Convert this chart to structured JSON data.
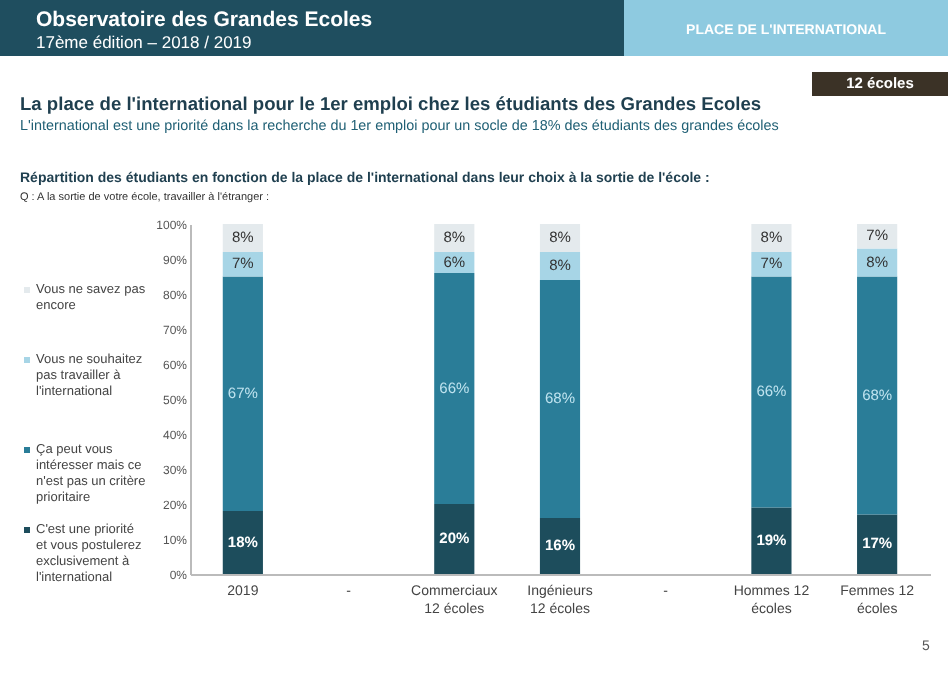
{
  "chart_data": {
    "type": "bar",
    "stacked": true,
    "title": "Observatoire des Grandes Ecoles",
    "subtitle": "17ème édition – 2018 / 2019",
    "annotations": [
      "PLACE DE L'INTERNATIONAL",
      "12 écoles",
      "La place de l'international pour le 1er emploi chez les étudiants des Grandes Ecoles",
      "L'international est une priorité dans la recherche du 1er emploi pour un socle de 18% des étudiants des grandes écoles",
      "Répartition des étudiants en fonction de la place de l'international dans leur choix à la sortie de l'école :",
      "Q : A la sortie de votre école, travailler à l'étranger :",
      "5"
    ],
    "categories": [
      "2019",
      "-",
      "Commerciaux 12 écoles",
      "Ingénieurs 12 écoles",
      "-",
      "Hommes 12 écoles",
      "Femmes 12 écoles"
    ],
    "series": [
      {
        "name": "C'est une priorité et vous postulerez exclusivement à l'international",
        "color": "#1d4d5c",
        "values": [
          18,
          null,
          20,
          16,
          null,
          19,
          17
        ],
        "value_labels": [
          "18%",
          null,
          "20%",
          "16%",
          null,
          "19%",
          "17%"
        ]
      },
      {
        "name": "Ça peut vous intéresser mais ce n'est pas un critère prioritaire",
        "color": "#2a7d98",
        "values": [
          67,
          null,
          66,
          68,
          null,
          66,
          68
        ],
        "value_labels": [
          "67%",
          null,
          "66%",
          "68%",
          null,
          "66%",
          "68%"
        ]
      },
      {
        "name": "Vous ne souhaitez pas travailler à l'international",
        "color": "#a7d5e6",
        "values": [
          7,
          null,
          6,
          8,
          null,
          7,
          8
        ],
        "value_labels": [
          "7%",
          null,
          "6%",
          "8%",
          null,
          "7%",
          "8%"
        ]
      },
      {
        "name": "Vous ne savez pas encore",
        "color": "#e4eaed",
        "values": [
          8,
          null,
          8,
          8,
          null,
          8,
          7
        ],
        "value_labels": [
          "8%",
          null,
          "8%",
          "8%",
          null,
          "8%",
          "7%"
        ]
      }
    ],
    "ylim": [
      0,
      100
    ],
    "yticks": [
      {
        "value": 0,
        "label": "0%"
      },
      {
        "value": 10,
        "label": "10%"
      },
      {
        "value": 20,
        "label": "20%"
      },
      {
        "value": 30,
        "label": "30%"
      },
      {
        "value": 40,
        "label": "40%"
      },
      {
        "value": 50,
        "label": "50%"
      },
      {
        "value": 60,
        "label": "60%"
      },
      {
        "value": 70,
        "label": "70%"
      },
      {
        "value": 80,
        "label": "80%"
      },
      {
        "value": 90,
        "label": "90%"
      },
      {
        "value": 100,
        "label": "100%"
      }
    ],
    "legend": "left"
  }
}
